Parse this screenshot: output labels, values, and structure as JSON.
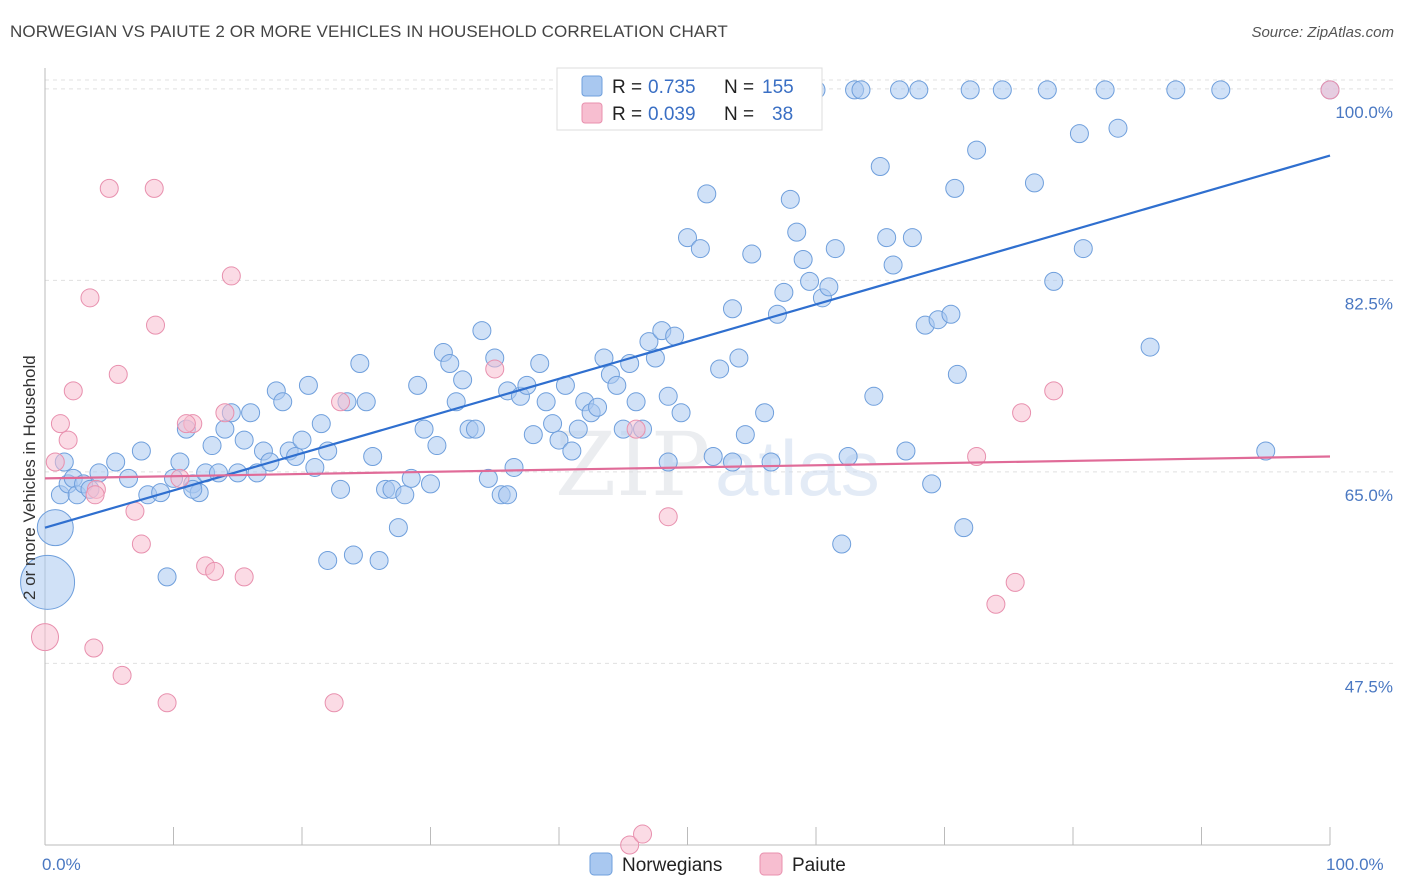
{
  "header": {
    "title": "NORWEGIAN VS PAIUTE 2 OR MORE VEHICLES IN HOUSEHOLD CORRELATION CHART",
    "source": "Source: ZipAtlas.com"
  },
  "watermark": {
    "zip": "ZIP",
    "atlas": "atlas"
  },
  "legend": {
    "r_label": "R =",
    "n_label": "N =",
    "rows": [
      {
        "series": "Norwegians",
        "r": "0.735",
        "n": "155"
      },
      {
        "series": "Paiute",
        "r": "0.039",
        "n": "38"
      }
    ]
  },
  "colors": {
    "norwegians_fill": "#a9c8f0",
    "norwegians_stroke": "#6f9fdc",
    "norwegians_line": "#2f6fcf",
    "paiute_fill": "#f7bed0",
    "paiute_stroke": "#e890ae",
    "paiute_line": "#e06b98",
    "grid": "#e0e0e0",
    "axis_label": "#4a78c2"
  },
  "chart_data": {
    "type": "scatter",
    "title": "NORWEGIAN VS PAIUTE 2 OR MORE VEHICLES IN HOUSEHOLD CORRELATION CHART",
    "xlabel": "",
    "ylabel": "2 or more Vehicles in Household",
    "xlim": [
      0,
      100
    ],
    "ylim": [
      31,
      102
    ],
    "x_tick_labels": [
      "0.0%",
      "100.0%"
    ],
    "y_ticks": [
      {
        "value": 47.5,
        "label": "47.5%"
      },
      {
        "value": 65.0,
        "label": "65.0%"
      },
      {
        "value": 82.5,
        "label": "82.5%"
      },
      {
        "value": 100.0,
        "label": "100.0%"
      }
    ],
    "grid": true,
    "legend_position": "top-center",
    "series": [
      {
        "name": "Norwegians",
        "r": 0.735,
        "n": 155,
        "trend": {
          "x": [
            0,
            100
          ],
          "y": [
            60.0,
            94.0
          ]
        },
        "points": [
          [
            0.2,
            55,
            3
          ],
          [
            0.8,
            60,
            2
          ],
          [
            1.2,
            63,
            1
          ],
          [
            1.5,
            66,
            1
          ],
          [
            1.8,
            64,
            1
          ],
          [
            2.2,
            64.5,
            1
          ],
          [
            2.5,
            63,
            1
          ],
          [
            3.0,
            64,
            1
          ],
          [
            3.5,
            63.5,
            1
          ],
          [
            4.2,
            65,
            1
          ],
          [
            5.5,
            66,
            1
          ],
          [
            6.5,
            64.5,
            1
          ],
          [
            7.5,
            67,
            1
          ],
          [
            8.0,
            63,
            1
          ],
          [
            9.0,
            63.2,
            1
          ],
          [
            9.5,
            55.5,
            1
          ],
          [
            10.0,
            64.5,
            1
          ],
          [
            10.5,
            66,
            1
          ],
          [
            11.0,
            69,
            1
          ],
          [
            11.5,
            64,
            1
          ],
          [
            12.0,
            63.2,
            1
          ],
          [
            12.5,
            65,
            1
          ],
          [
            13.0,
            67.5,
            1
          ],
          [
            13.5,
            65,
            1
          ],
          [
            14.0,
            69,
            1
          ],
          [
            14.5,
            70.5,
            1
          ],
          [
            15.0,
            65,
            1
          ],
          [
            15.5,
            68,
            1
          ],
          [
            16.0,
            70.5,
            1
          ],
          [
            16.5,
            65,
            1
          ],
          [
            17.0,
            67,
            1
          ],
          [
            17.5,
            66,
            1
          ],
          [
            18.0,
            72.5,
            1
          ],
          [
            18.5,
            71.5,
            1
          ],
          [
            19.0,
            67,
            1
          ],
          [
            19.5,
            66.5,
            1
          ],
          [
            20.0,
            68,
            1
          ],
          [
            20.5,
            73,
            1
          ],
          [
            21.0,
            65.5,
            1
          ],
          [
            21.5,
            69.5,
            1
          ],
          [
            22.0,
            67,
            1
          ],
          [
            23.0,
            63.5,
            1
          ],
          [
            23.5,
            71.5,
            1
          ],
          [
            24.0,
            57.5,
            1
          ],
          [
            24.5,
            75,
            1
          ],
          [
            25.0,
            71.5,
            1
          ],
          [
            25.5,
            66.5,
            1
          ],
          [
            26.0,
            57,
            1
          ],
          [
            26.5,
            63.5,
            1
          ],
          [
            27.0,
            63.5,
            1
          ],
          [
            27.5,
            60,
            1
          ],
          [
            28.0,
            63,
            1
          ],
          [
            28.5,
            64.5,
            1
          ],
          [
            29.0,
            73,
            1
          ],
          [
            29.5,
            69,
            1
          ],
          [
            30.0,
            64,
            1
          ],
          [
            30.5,
            67.5,
            1
          ],
          [
            31.0,
            76,
            1
          ],
          [
            31.5,
            75,
            1
          ],
          [
            32.0,
            71.5,
            1
          ],
          [
            32.5,
            73.5,
            1
          ],
          [
            33.0,
            69,
            1
          ],
          [
            33.5,
            69,
            1
          ],
          [
            34.0,
            78,
            1
          ],
          [
            34.5,
            64.5,
            1
          ],
          [
            35.0,
            75.5,
            1
          ],
          [
            35.5,
            63,
            1
          ],
          [
            36.0,
            72.5,
            1
          ],
          [
            36.5,
            65.5,
            1
          ],
          [
            37.0,
            72,
            1
          ],
          [
            37.5,
            73,
            1
          ],
          [
            38.0,
            68.5,
            1
          ],
          [
            38.5,
            75,
            1
          ],
          [
            39.0,
            71.5,
            1
          ],
          [
            39.5,
            69.5,
            1
          ],
          [
            40.0,
            68,
            1
          ],
          [
            40.5,
            73,
            1
          ],
          [
            41.0,
            67,
            1
          ],
          [
            41.5,
            69,
            1
          ],
          [
            42.0,
            71.5,
            1
          ],
          [
            42.5,
            70.5,
            1
          ],
          [
            43.0,
            71,
            1
          ],
          [
            43.5,
            75.5,
            1
          ],
          [
            44.0,
            74,
            1
          ],
          [
            44.5,
            73,
            1
          ],
          [
            45.0,
            69,
            1
          ],
          [
            45.5,
            75,
            1
          ],
          [
            46.0,
            71.5,
            1
          ],
          [
            46.5,
            69,
            1
          ],
          [
            47.0,
            77,
            1
          ],
          [
            47.5,
            75.5,
            1
          ],
          [
            48.0,
            78,
            1
          ],
          [
            48.5,
            66,
            1
          ],
          [
            49.0,
            77.5,
            1
          ],
          [
            49.5,
            70.5,
            1
          ],
          [
            50.0,
            86.5,
            1
          ],
          [
            51.0,
            85.5,
            1
          ],
          [
            51.5,
            90.5,
            1
          ],
          [
            52.0,
            66.5,
            1
          ],
          [
            52.5,
            74.5,
            1
          ],
          [
            53.5,
            80,
            1
          ],
          [
            53.5,
            66,
            1
          ],
          [
            54.0,
            75.5,
            1
          ],
          [
            54.5,
            68.5,
            1
          ],
          [
            55.0,
            85,
            1
          ],
          [
            56.0,
            70.5,
            1
          ],
          [
            56.5,
            66,
            1
          ],
          [
            57.0,
            79.5,
            1
          ],
          [
            57.5,
            81.5,
            1
          ],
          [
            58.0,
            90,
            1
          ],
          [
            58.5,
            87,
            1
          ],
          [
            59.0,
            84.5,
            1
          ],
          [
            59.5,
            82.5,
            1
          ],
          [
            60.0,
            100,
            1
          ],
          [
            60.5,
            81,
            1
          ],
          [
            61.0,
            82,
            1
          ],
          [
            61.5,
            85.5,
            1
          ],
          [
            62.0,
            58.5,
            1
          ],
          [
            62.5,
            66.5,
            1
          ],
          [
            63.0,
            100,
            1
          ],
          [
            63.5,
            100,
            1
          ],
          [
            64.5,
            72,
            1
          ],
          [
            65.0,
            93,
            1
          ],
          [
            65.5,
            86.5,
            1
          ],
          [
            66.0,
            84,
            1
          ],
          [
            66.5,
            100,
            1
          ],
          [
            67.0,
            67,
            1
          ],
          [
            67.5,
            86.5,
            1
          ],
          [
            68.0,
            100,
            1
          ],
          [
            68.5,
            78.5,
            1
          ],
          [
            69.0,
            64,
            1
          ],
          [
            69.5,
            79,
            1
          ],
          [
            70.5,
            79.5,
            1
          ],
          [
            70.8,
            91,
            1
          ],
          [
            71.0,
            74,
            1
          ],
          [
            71.5,
            60,
            1
          ],
          [
            72.0,
            100,
            1
          ],
          [
            72.5,
            94.5,
            1
          ],
          [
            74.5,
            100,
            1
          ],
          [
            77.0,
            91.5,
            1
          ],
          [
            78.0,
            100,
            1
          ],
          [
            78.5,
            82.5,
            1
          ],
          [
            80.5,
            96,
            1
          ],
          [
            80.8,
            85.5,
            1
          ],
          [
            82.5,
            100,
            1
          ],
          [
            83.5,
            96.5,
            1
          ],
          [
            86.0,
            76.5,
            1
          ],
          [
            88.0,
            100,
            1
          ],
          [
            91.5,
            100,
            1
          ],
          [
            100.0,
            100,
            1
          ],
          [
            95.0,
            67,
            1
          ],
          [
            36.0,
            63,
            1
          ],
          [
            48.5,
            72,
            1
          ],
          [
            22.0,
            57,
            1
          ],
          [
            11.5,
            63.5,
            1
          ]
        ]
      },
      {
        "name": "Paiute",
        "r": 0.039,
        "n": 38,
        "trend": {
          "x": [
            0,
            100
          ],
          "y": [
            64.5,
            66.5
          ]
        },
        "points": [
          [
            0.0,
            50,
            1.5
          ],
          [
            0.8,
            66,
            1
          ],
          [
            1.2,
            69.5,
            1
          ],
          [
            1.8,
            68,
            1
          ],
          [
            2.2,
            72.5,
            1
          ],
          [
            3.5,
            81,
            1
          ],
          [
            3.8,
            49,
            1
          ],
          [
            4.0,
            63.5,
            1
          ],
          [
            5.0,
            91,
            1
          ],
          [
            5.7,
            74,
            1
          ],
          [
            6.0,
            46.5,
            1
          ],
          [
            7.0,
            61.5,
            1
          ],
          [
            7.5,
            58.5,
            1
          ],
          [
            8.5,
            91,
            1
          ],
          [
            8.6,
            78.5,
            1
          ],
          [
            9.5,
            44,
            1
          ],
          [
            10.5,
            64.5,
            1
          ],
          [
            11.5,
            69.5,
            1
          ],
          [
            12.5,
            56.5,
            1
          ],
          [
            13.2,
            56,
            1
          ],
          [
            14.0,
            70.5,
            1
          ],
          [
            14.5,
            83,
            1
          ],
          [
            15.5,
            55.5,
            1
          ],
          [
            22.5,
            44,
            1
          ],
          [
            23.0,
            71.5,
            1
          ],
          [
            35.0,
            74.5,
            1
          ],
          [
            45.5,
            31,
            1
          ],
          [
            46.0,
            69,
            1
          ],
          [
            46.5,
            32,
            1
          ],
          [
            48.5,
            61,
            1
          ],
          [
            72.5,
            66.5,
            1
          ],
          [
            74.0,
            53,
            1
          ],
          [
            75.5,
            55,
            1
          ],
          [
            76.0,
            70.5,
            1
          ],
          [
            78.5,
            72.5,
            1
          ],
          [
            100.0,
            100,
            1
          ],
          [
            11.0,
            69.5,
            1
          ],
          [
            3.9,
            63,
            1
          ]
        ]
      }
    ]
  },
  "bottom_legend": [
    "Norwegians",
    "Paiute"
  ]
}
